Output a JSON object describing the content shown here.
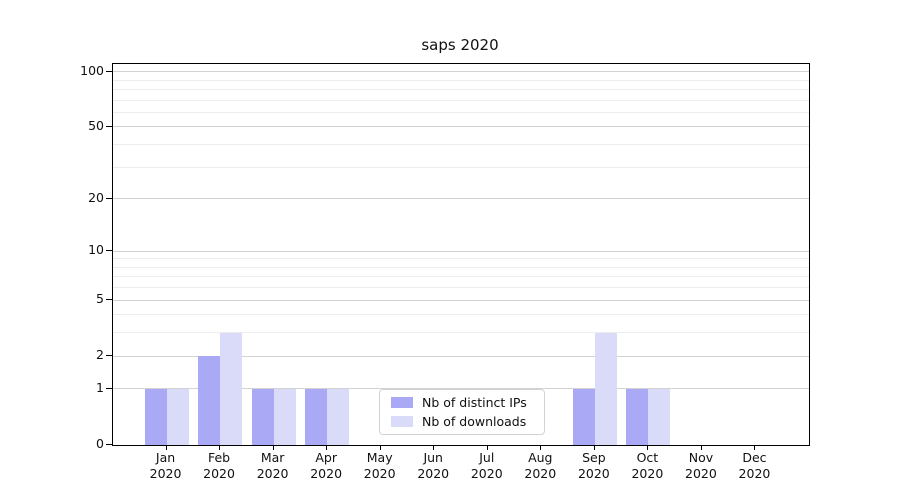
{
  "chart_data": {
    "type": "bar",
    "title": "saps 2020",
    "categories": [
      "Jan",
      "Feb",
      "Mar",
      "Apr",
      "May",
      "Jun",
      "Jul",
      "Aug",
      "Sep",
      "Oct",
      "Nov",
      "Dec"
    ],
    "year_label": "2020",
    "series": [
      {
        "name": "Nb of distinct IPs",
        "color": "#a9a9f6",
        "values": [
          1,
          2,
          1,
          1,
          0,
          0,
          0,
          0,
          1,
          1,
          0,
          0
        ]
      },
      {
        "name": "Nb of downloads",
        "color": "#dadaf9",
        "values": [
          1,
          3,
          1,
          1,
          0,
          0,
          0,
          0,
          3,
          1,
          0,
          0
        ]
      }
    ],
    "y_scale": "log1p",
    "y_axis_ticks": [
      100,
      50,
      20,
      10,
      5,
      2,
      1,
      0
    ],
    "y_minor_gridlines": [
      3,
      4,
      6,
      7,
      8,
      9,
      30,
      40,
      60,
      70,
      80,
      90
    ],
    "ylim": [
      0,
      110
    ],
    "xlabel": "",
    "ylabel": "",
    "grid": "on",
    "legend_position": "bottom-center"
  }
}
